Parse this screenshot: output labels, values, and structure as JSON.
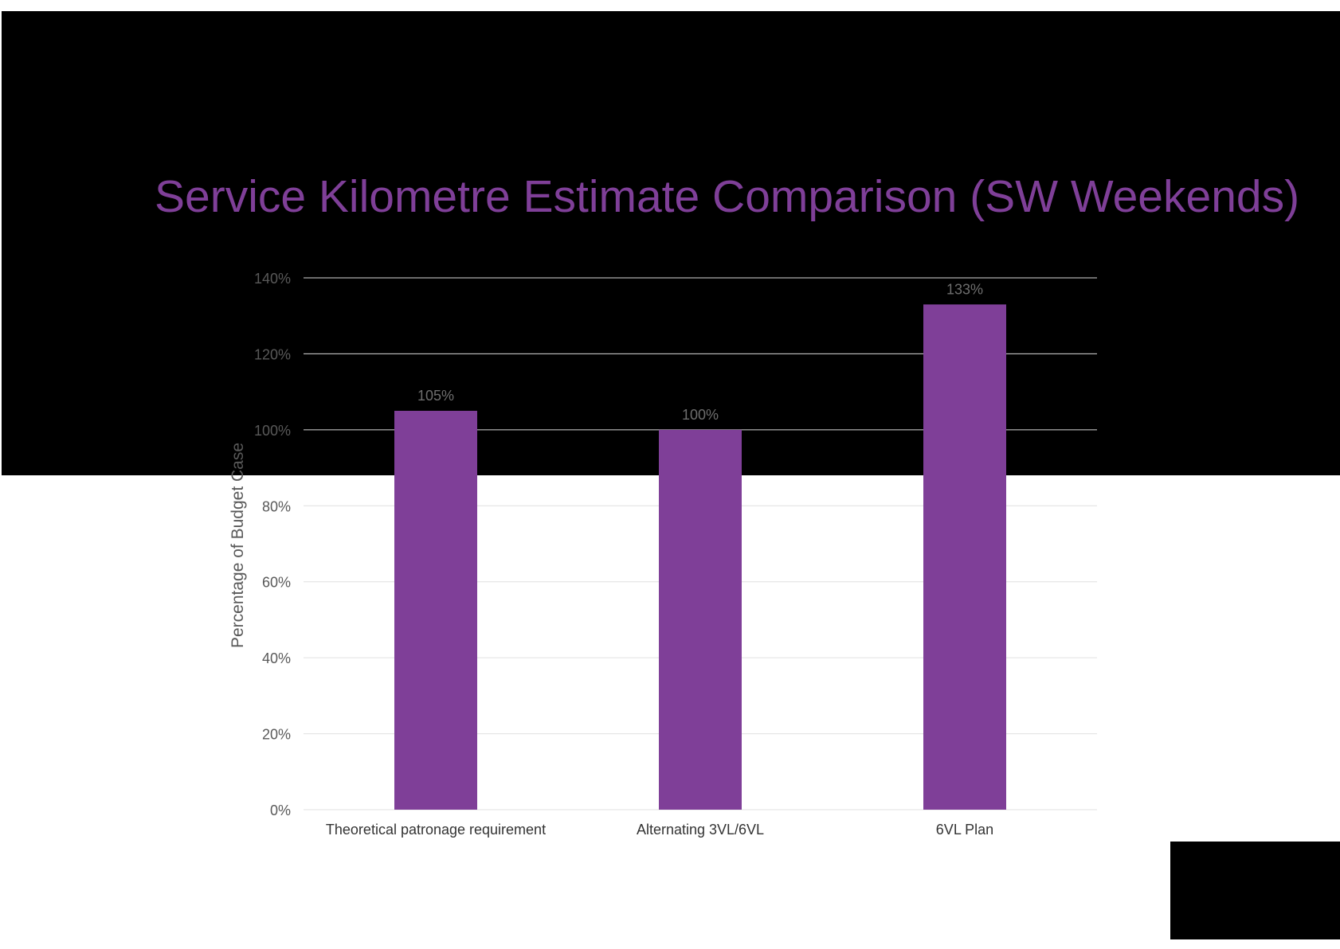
{
  "colors": {
    "accent": "#7f3f98",
    "background_band": "#000000",
    "page_background": "#ffffff",
    "grid_on_dark": "#d9d9d9",
    "grid_on_light": "#e0e0e0",
    "tick_label": "#595959",
    "category_label": "#333333",
    "data_label": "#6e6e6e"
  },
  "chart_data": {
    "type": "bar",
    "title": "Service Kilometre Estimate Comparison (SW Weekends)",
    "xlabel": "",
    "ylabel": "Percentage of Budget Case",
    "categories": [
      "Theoretical patronage requirement",
      "Alternating 3VL/6VL",
      "6VL Plan"
    ],
    "values": [
      105,
      100,
      133
    ],
    "data_labels": [
      "105%",
      "100%",
      "133%"
    ],
    "ylim": [
      0,
      140
    ],
    "yticks": [
      0,
      20,
      40,
      60,
      80,
      100,
      120,
      140
    ],
    "ytick_labels": [
      "0%",
      "20%",
      "40%",
      "60%",
      "80%",
      "100%",
      "120%",
      "140%"
    ],
    "grid": true,
    "legend": "none"
  }
}
